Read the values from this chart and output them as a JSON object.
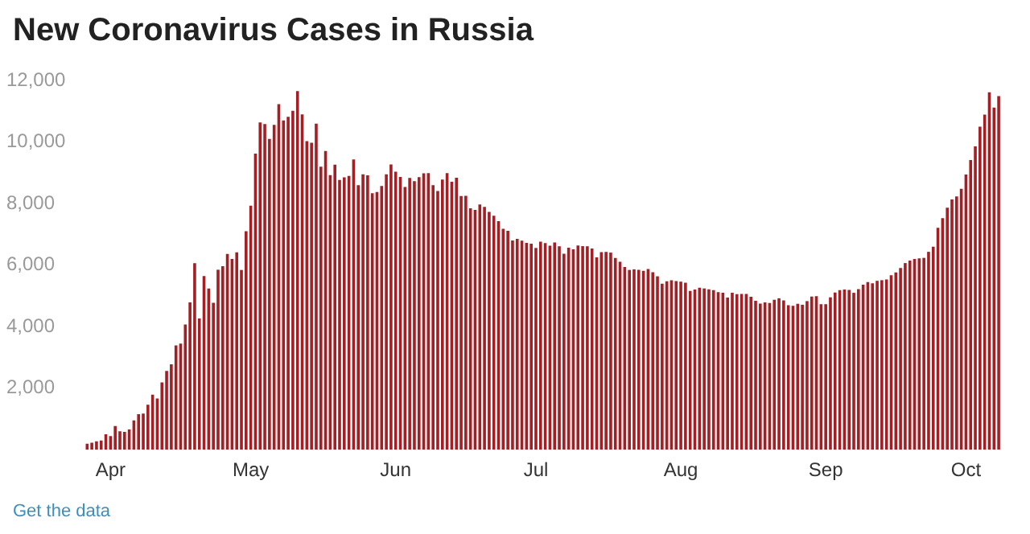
{
  "chart_data": {
    "type": "bar",
    "title": "New Coronavirus Cases in Russia",
    "categories": [
      null,
      null,
      null,
      null,
      null,
      "Apr",
      null,
      null,
      null,
      null,
      null,
      null,
      null,
      null,
      null,
      null,
      null,
      null,
      null,
      null,
      null,
      null,
      null,
      null,
      null,
      null,
      null,
      null,
      null,
      null,
      null,
      null,
      null,
      null,
      null,
      "May",
      null,
      null,
      null,
      null,
      null,
      null,
      null,
      null,
      null,
      null,
      null,
      null,
      null,
      null,
      null,
      null,
      null,
      null,
      null,
      null,
      null,
      null,
      null,
      null,
      null,
      null,
      null,
      null,
      null,
      null,
      "Jun",
      null,
      null,
      null,
      null,
      null,
      null,
      null,
      null,
      null,
      null,
      null,
      null,
      null,
      null,
      null,
      null,
      null,
      null,
      null,
      null,
      null,
      null,
      null,
      null,
      null,
      null,
      null,
      null,
      null,
      "Jul",
      null,
      null,
      null,
      null,
      null,
      null,
      null,
      null,
      null,
      null,
      null,
      null,
      null,
      null,
      null,
      null,
      null,
      null,
      null,
      null,
      null,
      null,
      null,
      null,
      null,
      null,
      null,
      null,
      null,
      null,
      "Aug",
      null,
      null,
      null,
      null,
      null,
      null,
      null,
      null,
      null,
      null,
      null,
      null,
      null,
      null,
      null,
      null,
      null,
      null,
      null,
      null,
      null,
      null,
      null,
      null,
      null,
      null,
      null,
      null,
      null,
      null,
      "Sep",
      null,
      null,
      null,
      null,
      null,
      null,
      null,
      null,
      null,
      null,
      null,
      null,
      null,
      null,
      null,
      null,
      null,
      null,
      null,
      null,
      null,
      null,
      null,
      null,
      null,
      null,
      null,
      null,
      null,
      "Oct",
      null,
      null,
      null,
      null,
      null,
      null,
      null
    ],
    "values": [
      196,
      228,
      270,
      302,
      501,
      440,
      771,
      601,
      582,
      658,
      954,
      1154,
      1175,
      1459,
      1786,
      1667,
      2186,
      2558,
      2774,
      3388,
      3448,
      4070,
      4785,
      6060,
      4268,
      5642,
      5236,
      4774,
      5849,
      5966,
      6361,
      6198,
      6411,
      5841,
      7099,
      7933,
      9623,
      10633,
      10581,
      10102,
      10559,
      11231,
      10699,
      10817,
      11012,
      11656,
      10899,
      10028,
      9974,
      10598,
      9200,
      9709,
      8926,
      9263,
      8764,
      8849,
      8894,
      9434,
      8599,
      8946,
      8915,
      8338,
      8371,
      8572,
      8952,
      9268,
      9035,
      8863,
      8536,
      8831,
      8726,
      8855,
      8984,
      8985,
      8595,
      8404,
      8779,
      8987,
      8706,
      8835,
      8246,
      8248,
      7843,
      7790,
      7972,
      7889,
      7728,
      7600,
      7425,
      7176,
      7113,
      6800,
      6852,
      6791,
      6719,
      6693,
      6556,
      6760,
      6718,
      6632,
      6736,
      6611,
      6368,
      6562,
      6509,
      6635,
      6615,
      6611,
      6537,
      6248,
      6422,
      6428,
      6406,
      6234,
      6109,
      5940,
      5842,
      5862,
      5848,
      5811,
      5871,
      5765,
      5635,
      5395,
      5475,
      5509,
      5482,
      5462,
      5427,
      5159,
      5204,
      5267,
      5241,
      5212,
      5189,
      5118,
      5102,
      4945,
      5102,
      5057,
      5065,
      5061,
      4969,
      4839,
      4748,
      4790,
      4767,
      4870,
      4921,
      4852,
      4696,
      4676,
      4744,
      4711,
      4829,
      4980,
      4993,
      4729,
      4729,
      4952,
      5110,
      5185,
      5205,
      5195,
      5099,
      5218,
      5363,
      5449,
      5406,
      5488,
      5509,
      5529,
      5670,
      5762,
      5905,
      6065,
      6148,
      6196,
      6215,
      6234,
      6431,
      6595,
      7212,
      7523,
      7867,
      8135,
      8232,
      8481,
      8945,
      9412,
      9859,
      10499,
      10888,
      11615,
      11115,
      11493
    ],
    "color": "#a31f24",
    "ylim": [
      0,
      12000
    ],
    "yticks": [
      {
        "value": 2000,
        "label": "2,000"
      },
      {
        "value": 4000,
        "label": "4,000"
      },
      {
        "value": 6000,
        "label": "6,000"
      },
      {
        "value": 8000,
        "label": "8,000"
      },
      {
        "value": 10000,
        "label": "10,000"
      },
      {
        "value": 12000,
        "label": "12,000"
      }
    ],
    "grid": false,
    "legend": false,
    "annotations": [
      "Get the data"
    ]
  }
}
